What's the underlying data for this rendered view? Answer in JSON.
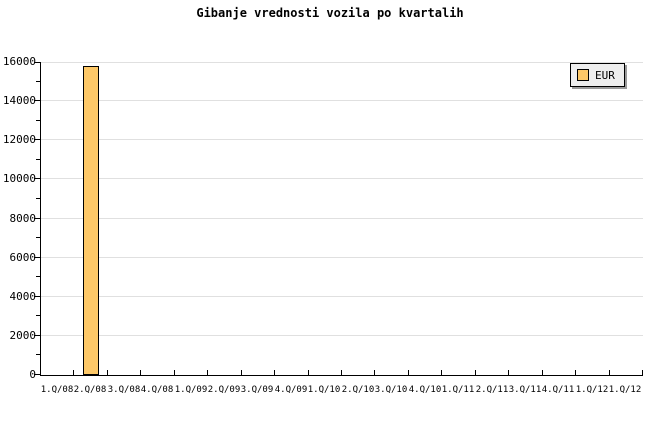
{
  "chart_data": {
    "type": "bar",
    "title": "Gibanje vrednosti vozila po kvartalih",
    "categories": [
      "1.Q/08",
      "2.Q/08",
      "3.Q/08",
      "4.Q/08",
      "1.Q/09",
      "2.Q/09",
      "3.Q/09",
      "4.Q/09",
      "1.Q/10",
      "2.Q/10",
      "3.Q/10",
      "4.Q/10",
      "1.Q/11",
      "2.Q/11",
      "3.Q/11",
      "4.Q/11",
      "1.Q/12",
      "1.Q/12"
    ],
    "series": [
      {
        "name": "EUR",
        "color": "#fdc868",
        "values": [
          null,
          15800,
          null,
          null,
          null,
          null,
          null,
          null,
          null,
          null,
          null,
          null,
          null,
          null,
          null,
          null,
          null,
          null
        ]
      }
    ],
    "xlabel": "",
    "ylabel": "",
    "ylim": [
      0,
      16000
    ],
    "y_ticks": [
      0,
      2000,
      4000,
      6000,
      8000,
      10000,
      12000,
      14000,
      16000
    ],
    "y_minor_tick_step": 1000,
    "grid": true,
    "grid_color": "#e0e0e0",
    "axis_color": "#000000",
    "bar_border_color": "#000000",
    "legend": {
      "position": "top-right",
      "label": "EUR",
      "swatch_color": "#fdc868",
      "background": "#eeeeee",
      "border_color": "#000000",
      "shadow_color": "#9a9a9a"
    }
  }
}
